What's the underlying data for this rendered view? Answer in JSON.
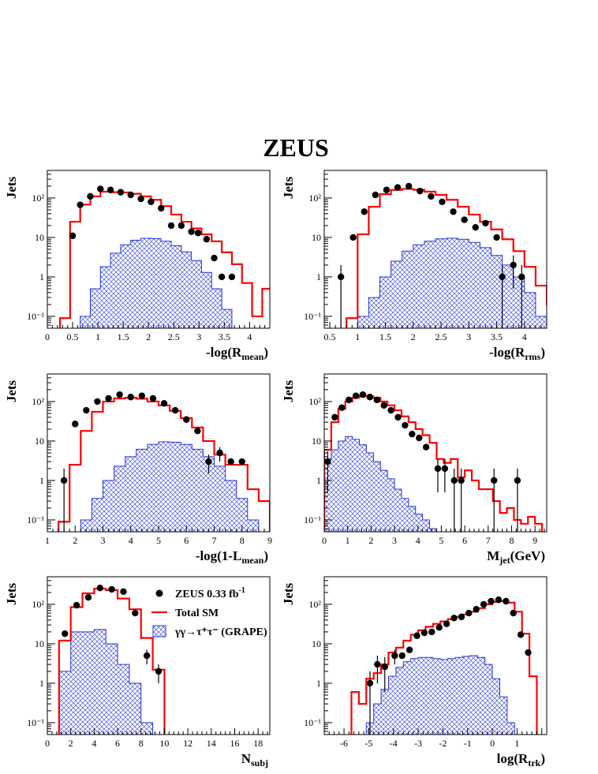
{
  "figure": {
    "title": "ZEUS"
  },
  "legend": [
    {
      "label": "ZEUS 0.33 fb",
      "sup": "-1",
      "kind": "data",
      "color": "#000000"
    },
    {
      "label": "Total SM",
      "sup": "",
      "kind": "line",
      "color": "#ff0000"
    },
    {
      "label": "γγ→τ⁺τ⁻ (GRAPE)",
      "sup": "",
      "kind": "hatch",
      "color": "#2233dd"
    }
  ],
  "chart_data": [
    {
      "type": "histogram",
      "ylabel": "Jets",
      "xlabel_main": "-log(R",
      "xlabel_sub": "mean",
      "xlabel_end": ")",
      "log_y": true,
      "ylim": [
        0.05,
        500
      ],
      "xlim": [
        0,
        4.4
      ],
      "xticks": [
        0,
        0.5,
        1,
        1.5,
        2,
        2.5,
        3,
        3.5,
        4
      ],
      "xtick_labels": [
        "0",
        "0.5",
        "1",
        "1.5",
        "2",
        "2.5",
        "3",
        "3.5",
        "4"
      ],
      "yticks": [
        0.1,
        1,
        10,
        100
      ],
      "ytick_labels": [
        "10⁻¹",
        "1",
        "10",
        "10²"
      ],
      "points": [
        [
          0.5,
          11,
          1.5
        ],
        [
          0.65,
          67,
          0
        ],
        [
          0.85,
          110,
          0
        ],
        [
          1.05,
          170,
          0
        ],
        [
          1.25,
          160,
          0
        ],
        [
          1.45,
          140,
          0
        ],
        [
          1.65,
          120,
          0
        ],
        [
          1.85,
          95,
          0
        ],
        [
          2.05,
          80,
          0
        ],
        [
          2.25,
          55,
          0
        ],
        [
          2.45,
          20,
          0
        ],
        [
          2.65,
          20,
          0
        ],
        [
          2.85,
          14,
          0
        ],
        [
          2.98,
          13,
          0
        ],
        [
          3.15,
          9,
          0
        ],
        [
          3.3,
          3,
          0
        ],
        [
          3.45,
          1,
          0
        ],
        [
          3.65,
          1,
          0
        ]
      ],
      "sm": {
        "x0": 0.25,
        "dx": 0.2,
        "values": [
          0.09,
          25,
          68,
          110,
          145,
          140,
          138,
          128,
          110,
          90,
          62,
          38,
          25,
          17,
          12,
          8,
          4.2,
          2.1,
          0.7,
          0.1,
          0.5
        ]
      },
      "signal": {
        "x0": 0.65,
        "dx": 0.2,
        "values": [
          0.1,
          0.5,
          1.8,
          4,
          6.5,
          8.5,
          9.5,
          9.3,
          8,
          6.2,
          4.3,
          2.6,
          1.3,
          0.5,
          0.15,
          0.05
        ]
      }
    },
    {
      "type": "histogram",
      "ylabel": "Jets",
      "xlabel_main": "-log(R",
      "xlabel_sub": "rms",
      "xlabel_end": ")",
      "log_y": true,
      "ylim": [
        0.05,
        500
      ],
      "xlim": [
        0.4,
        4.4
      ],
      "xticks": [
        0.5,
        1,
        1.5,
        2,
        2.5,
        3,
        3.5,
        4
      ],
      "xtick_labels": [
        "0.5",
        "1",
        "1.5",
        "2",
        "2.5",
        "3",
        "3.5",
        "4"
      ],
      "yticks": [
        0.1,
        1,
        10,
        100
      ],
      "ytick_labels": [
        "10⁻¹",
        "1",
        "10",
        "10²"
      ],
      "points": [
        [
          0.7,
          1,
          1
        ],
        [
          0.92,
          10,
          1
        ],
        [
          1.12,
          45,
          0
        ],
        [
          1.32,
          120,
          0
        ],
        [
          1.52,
          160,
          0
        ],
        [
          1.72,
          185,
          0
        ],
        [
          1.92,
          200,
          0
        ],
        [
          2.12,
          150,
          0
        ],
        [
          2.32,
          110,
          0
        ],
        [
          2.52,
          80,
          0
        ],
        [
          2.72,
          45,
          0
        ],
        [
          2.92,
          28,
          0
        ],
        [
          3.12,
          18,
          0
        ],
        [
          3.3,
          23,
          0
        ],
        [
          3.5,
          10,
          0
        ],
        [
          3.6,
          1,
          1
        ],
        [
          3.8,
          2,
          1.5
        ],
        [
          3.95,
          1,
          1
        ]
      ],
      "sm": {
        "x0": 0.8,
        "dx": 0.2,
        "values": [
          0.09,
          12,
          60,
          125,
          160,
          170,
          162,
          145,
          120,
          90,
          60,
          38,
          25,
          16,
          9,
          4.5,
          1.8,
          0.6,
          0.2
        ]
      },
      "signal": {
        "x0": 1.0,
        "dx": 0.2,
        "values": [
          0.1,
          0.3,
          1,
          2.5,
          4.5,
          6.5,
          8,
          9.2,
          9.5,
          9,
          7.5,
          5.5,
          3.5,
          2,
          1,
          0.4,
          0.1
        ]
      }
    },
    {
      "type": "histogram",
      "ylabel": "Jets",
      "xlabel_main": "-log(1-L",
      "xlabel_sub": "mean",
      "xlabel_end": ")",
      "log_y": true,
      "ylim": [
        0.05,
        500
      ],
      "xlim": [
        1,
        9
      ],
      "xticks": [
        1,
        2,
        3,
        4,
        5,
        6,
        7,
        8,
        9
      ],
      "xtick_labels": [
        "1",
        "2",
        "3",
        "4",
        "5",
        "6",
        "7",
        "8",
        "9"
      ],
      "yticks": [
        0.1,
        1,
        10,
        100
      ],
      "ytick_labels": [
        "10⁻¹",
        "1",
        "10",
        "10²"
      ],
      "points": [
        [
          1.6,
          1,
          1
        ],
        [
          2.0,
          27,
          0
        ],
        [
          2.4,
          60,
          0
        ],
        [
          2.8,
          100,
          0
        ],
        [
          3.2,
          120,
          0
        ],
        [
          3.6,
          150,
          0
        ],
        [
          4.0,
          130,
          0
        ],
        [
          4.4,
          140,
          0
        ],
        [
          4.8,
          120,
          0
        ],
        [
          5.2,
          90,
          0
        ],
        [
          5.6,
          60,
          0
        ],
        [
          6.0,
          35,
          0
        ],
        [
          6.4,
          18,
          0
        ],
        [
          6.8,
          3,
          1.5
        ],
        [
          7.2,
          5,
          2
        ],
        [
          7.6,
          3,
          0
        ],
        [
          8.0,
          3,
          0
        ]
      ],
      "sm": {
        "x0": 1.4,
        "dx": 0.4,
        "values": [
          0.09,
          2.5,
          18,
          55,
          100,
          120,
          125,
          118,
          100,
          80,
          58,
          38,
          22,
          10,
          4.5,
          2.5,
          2.5,
          0.6,
          0.3
        ]
      },
      "signal": {
        "x0": 2.2,
        "dx": 0.4,
        "values": [
          0.1,
          0.35,
          1,
          2.3,
          4,
          6.2,
          8.2,
          9.5,
          9.3,
          8.2,
          6.2,
          4,
          2.3,
          1,
          0.35,
          0.1
        ]
      }
    },
    {
      "type": "histogram",
      "ylabel": "Jets",
      "xlabel_main": "M",
      "xlabel_sub": "jet",
      "xlabel_end": "(GeV)",
      "log_y": true,
      "ylim": [
        0.05,
        500
      ],
      "xlim": [
        0,
        9.5
      ],
      "xticks": [
        0,
        1,
        2,
        3,
        4,
        5,
        6,
        7,
        8,
        9
      ],
      "xtick_labels": [
        "0",
        "1",
        "2",
        "3",
        "4",
        "5",
        "6",
        "7",
        "8",
        "9"
      ],
      "yticks": [
        0.1,
        1,
        10,
        100
      ],
      "ytick_labels": [
        "10⁻¹",
        "1",
        "10",
        "10²"
      ],
      "points": [
        [
          0.15,
          3,
          2.5
        ],
        [
          0.45,
          40,
          0
        ],
        [
          0.75,
          70,
          0
        ],
        [
          1.05,
          110,
          0
        ],
        [
          1.35,
          140,
          0
        ],
        [
          1.65,
          150,
          0
        ],
        [
          1.95,
          130,
          0
        ],
        [
          2.25,
          110,
          0
        ],
        [
          2.55,
          80,
          0
        ],
        [
          2.85,
          60,
          0
        ],
        [
          3.15,
          40,
          0
        ],
        [
          3.45,
          25,
          0
        ],
        [
          3.75,
          15,
          0
        ],
        [
          4.05,
          12,
          0
        ],
        [
          4.35,
          7,
          0
        ],
        [
          4.85,
          2,
          1.5
        ],
        [
          5.15,
          2,
          1.5
        ],
        [
          5.55,
          1,
          1
        ],
        [
          5.85,
          1,
          1
        ],
        [
          7.25,
          1,
          1
        ],
        [
          8.25,
          1,
          1
        ]
      ],
      "sm": {
        "x0": 0.0,
        "dx": 0.3,
        "values": [
          6,
          30,
          65,
          100,
          125,
          140,
          135,
          125,
          100,
          80,
          60,
          42,
          30,
          20,
          14,
          9,
          3.5,
          2.8,
          3.5,
          1.2,
          1.8,
          1,
          0.6,
          0.6,
          0.3,
          0.15,
          0.2,
          0.1,
          0.08,
          0.12,
          0.08
        ]
      },
      "signal": {
        "x0": 0.0,
        "dx": 0.3,
        "values": [
          3.5,
          6,
          10,
          13,
          11,
          8,
          5,
          3,
          1.8,
          1.1,
          0.6,
          0.35,
          0.22,
          0.14,
          0.1,
          0.06
        ]
      }
    },
    {
      "type": "histogram",
      "ylabel": "Jets",
      "xlabel_main": "N",
      "xlabel_sub": "subj",
      "xlabel_end": "",
      "log_y": true,
      "ylim": [
        0.05,
        500
      ],
      "xlim": [
        0,
        19
      ],
      "xticks": [
        0,
        2,
        4,
        6,
        8,
        10,
        12,
        14,
        16,
        18
      ],
      "xtick_labels": [
        "0",
        "2",
        "4",
        "6",
        "8",
        "10",
        "12",
        "14",
        "16",
        "18"
      ],
      "yticks": [
        0.1,
        1,
        10,
        100
      ],
      "ytick_labels": [
        "10⁻¹",
        "1",
        "10",
        "10²"
      ],
      "points": [
        [
          1.5,
          18,
          0
        ],
        [
          2.5,
          95,
          0
        ],
        [
          3.5,
          150,
          0
        ],
        [
          4.5,
          260,
          0
        ],
        [
          5.5,
          240,
          0
        ],
        [
          6.5,
          210,
          0
        ],
        [
          7.5,
          60,
          0
        ],
        [
          8.5,
          5,
          2
        ],
        [
          9.5,
          2,
          1
        ]
      ],
      "sm": {
        "x0": 1.0,
        "dx": 1.0,
        "values": [
          12,
          85,
          190,
          250,
          230,
          140,
          75,
          14,
          2.2
        ]
      },
      "signal": {
        "x0": 1.0,
        "dx": 1.0,
        "values": [
          2,
          20,
          20,
          23,
          10,
          3,
          1,
          0.1
        ]
      }
    },
    {
      "type": "histogram",
      "ylabel": "Jets",
      "xlabel_main": "log(R",
      "xlabel_sub": "trk",
      "xlabel_end": ")",
      "log_y": true,
      "ylim": [
        0.05,
        500
      ],
      "xlim": [
        -6.8,
        2.2
      ],
      "xticks": [
        -6,
        -5,
        -4,
        -3,
        -2,
        -1,
        0,
        1
      ],
      "xtick_labels": [
        "-6",
        "-5",
        "-4",
        "-3",
        "-2",
        "-1",
        "0",
        "1"
      ],
      "yticks": [
        0.1,
        1,
        10,
        100
      ],
      "ytick_labels": [
        "10⁻¹",
        "1",
        "10",
        "10²"
      ],
      "points": [
        [
          -4.95,
          1,
          1
        ],
        [
          -4.65,
          3,
          2
        ],
        [
          -4.35,
          2.6,
          2
        ],
        [
          -3.95,
          5,
          2
        ],
        [
          -3.65,
          5,
          0
        ],
        [
          -3.35,
          7,
          0
        ],
        [
          -3.05,
          16,
          0
        ],
        [
          -2.75,
          19,
          0
        ],
        [
          -2.45,
          20,
          0
        ],
        [
          -2.15,
          26,
          0
        ],
        [
          -1.85,
          32,
          0
        ],
        [
          -1.55,
          45,
          0
        ],
        [
          -1.25,
          48,
          0
        ],
        [
          -0.95,
          60,
          0
        ],
        [
          -0.65,
          75,
          0
        ],
        [
          -0.35,
          100,
          0
        ],
        [
          -0.05,
          120,
          0
        ],
        [
          0.25,
          130,
          0
        ],
        [
          0.55,
          120,
          0
        ],
        [
          0.85,
          60,
          0
        ],
        [
          1.15,
          17,
          0
        ],
        [
          1.45,
          6,
          0
        ]
      ],
      "sm": {
        "x0": -5.7,
        "dx": 0.3,
        "values": [
          0.6,
          0.3,
          1.3,
          1.8,
          3,
          6,
          8,
          12,
          17,
          22,
          27,
          32,
          37,
          42,
          48,
          55,
          65,
          80,
          100,
          115,
          120,
          110,
          65,
          18,
          1.5
        ]
      },
      "signal": {
        "x0": -5.1,
        "dx": 0.3,
        "values": [
          0.1,
          0.3,
          0.7,
          1.5,
          2.5,
          3.5,
          4.2,
          4.5,
          4.5,
          4.2,
          4,
          4.2,
          4.5,
          4.8,
          5,
          4.5,
          3,
          1.3,
          0.45,
          0.1
        ]
      }
    }
  ]
}
